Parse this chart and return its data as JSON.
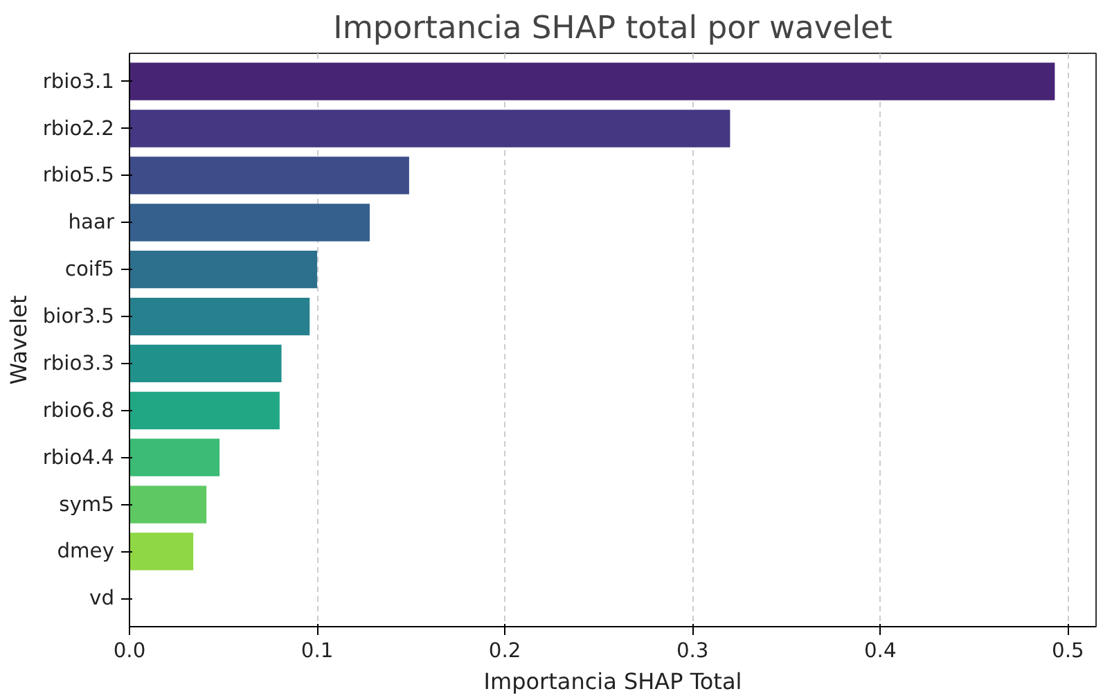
{
  "chart_data": {
    "type": "bar",
    "orientation": "horizontal",
    "title": "Importancia SHAP total por wavelet",
    "xlabel": "Importancia SHAP Total",
    "ylabel": "Wavelet",
    "categories": [
      "rbio3.1",
      "rbio2.2",
      "rbio5.5",
      "haar",
      "coif5",
      "bior3.5",
      "rbio3.3",
      "rbio6.8",
      "rbio4.4",
      "sym5",
      "dmey",
      "vd"
    ],
    "values": [
      0.493,
      0.32,
      0.149,
      0.128,
      0.1,
      0.096,
      0.081,
      0.08,
      0.048,
      0.041,
      0.034,
      0
    ],
    "colors": [
      "#482475",
      "#453781",
      "#3e4c8a",
      "#355f8d",
      "#2d708e",
      "#27808e",
      "#21918c",
      "#22a785",
      "#3bbb75",
      "#5ec962",
      "#8fd744",
      "#c8e020"
    ],
    "xlim": [
      0,
      0.515
    ],
    "xticks": [
      {
        "value": 0,
        "label": "0.0"
      },
      0.1,
      0.2,
      0.3,
      0.4,
      0.5
    ],
    "grid": "x"
  }
}
